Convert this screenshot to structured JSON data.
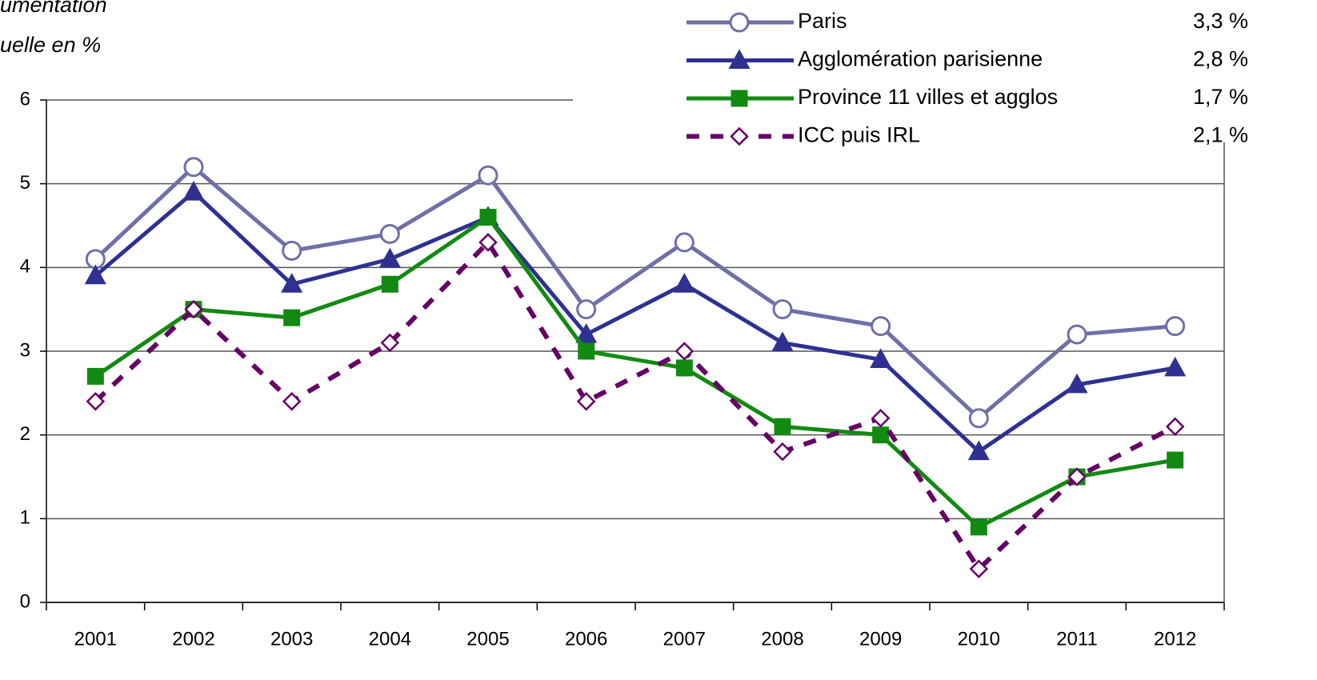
{
  "chart_data": {
    "type": "line",
    "y_label_lines": [
      "umentation",
      "uelle en %"
    ],
    "categories": [
      "2001",
      "2002",
      "2003",
      "2004",
      "2005",
      "2006",
      "2007",
      "2008",
      "2009",
      "2010",
      "2011",
      "2012"
    ],
    "ylim": [
      0,
      6
    ],
    "yticks": [
      0,
      1,
      2,
      3,
      4,
      5,
      6
    ],
    "grid": true,
    "series": [
      {
        "name": "Paris",
        "legend_value": "3,3 %",
        "color": "#6f6fa8",
        "marker": "circle",
        "dash": false,
        "values": [
          4.1,
          5.2,
          4.2,
          4.4,
          5.1,
          3.5,
          4.3,
          3.5,
          3.3,
          2.2,
          3.2,
          3.3
        ]
      },
      {
        "name": "Agglomération parisienne",
        "legend_value": "2,8 %",
        "color": "#2e3192",
        "marker": "triangle",
        "dash": false,
        "values": [
          3.9,
          4.9,
          3.8,
          4.1,
          4.6,
          3.2,
          3.8,
          3.1,
          2.9,
          1.8,
          2.6,
          2.8
        ]
      },
      {
        "name": "Province 11 villes et agglos",
        "legend_value": "1,7 %",
        "color": "#128a12",
        "marker": "square",
        "dash": false,
        "values": [
          2.7,
          3.5,
          3.4,
          3.8,
          4.6,
          3.0,
          2.8,
          2.1,
          2.0,
          0.9,
          1.5,
          1.7
        ]
      },
      {
        "name": "ICC puis IRL",
        "legend_value": "2,1 %",
        "color": "#660066",
        "marker": "diamond",
        "dash": true,
        "values": [
          2.4,
          3.5,
          2.4,
          3.1,
          4.3,
          2.4,
          3.0,
          1.8,
          2.2,
          0.4,
          1.5,
          2.1
        ]
      }
    ]
  }
}
